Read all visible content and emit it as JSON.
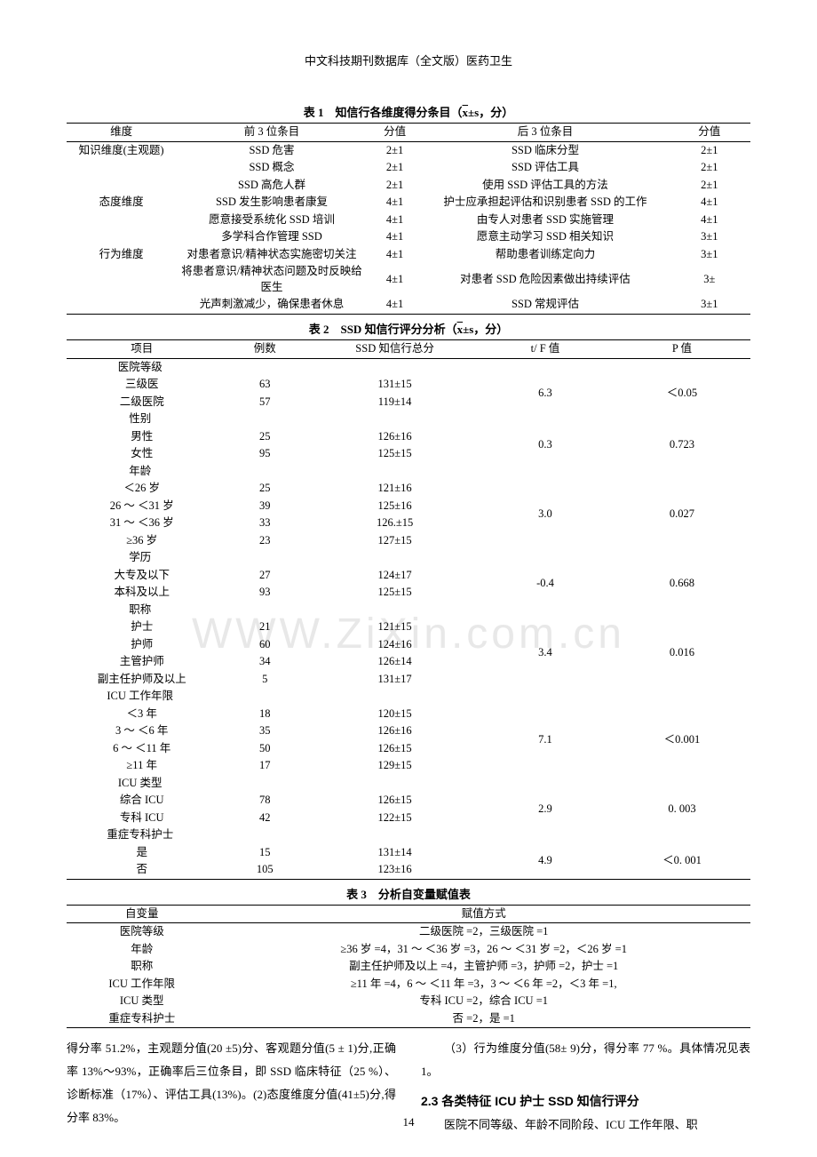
{
  "header": "中文科技期刊数据库（全文版）医药卫生",
  "watermark": "WWW.ZiXin.com.cn",
  "page_number": "14",
  "table1": {
    "caption_prefix": "表 1　知信行各维度得分条目（",
    "caption_xbar": "x",
    "caption_suffix": "±s，分）",
    "headers": [
      "维度",
      "前 3 位条目",
      "分值",
      "后 3 位条目",
      "分值"
    ],
    "rows": [
      [
        "知识维度(主观题)",
        "SSD 危害",
        "2±1",
        "SSD 临床分型",
        "2±1"
      ],
      [
        "",
        "SSD 概念",
        "2±1",
        "SSD 评估工具",
        "2±1"
      ],
      [
        "",
        "SSD 高危人群",
        "2±1",
        "使用 SSD 评估工具的方法",
        "2±1"
      ],
      [
        "态度维度",
        "SSD 发生影响患者康复",
        "4±1",
        "护士应承担起评估和识别患者 SSD 的工作",
        "4±1"
      ],
      [
        "",
        "愿意接受系统化 SSD 培训",
        "4±1",
        "由专人对患者 SSD 实施管理",
        "4±1"
      ],
      [
        "",
        "多学科合作管理 SSD",
        "4±1",
        "愿意主动学习 SSD 相关知识",
        "3±1"
      ],
      [
        "行为维度",
        "对患者意识/精神状态实施密切关注",
        "4±1",
        "帮助患者训练定向力",
        "3±1"
      ],
      [
        "",
        "将患者意识/精神状态问题及时反映给医生",
        "4±1",
        "对患者 SSD 危险因素做出持续评估",
        "3±"
      ],
      [
        "",
        "光声刺激减少，确保患者休息",
        "4±1",
        "SSD 常规评估",
        "3±1"
      ]
    ]
  },
  "table2": {
    "caption_prefix": "表 2　SSD 知信行评分分析（",
    "caption_xbar": "x",
    "caption_suffix": "±s，分）",
    "headers": [
      "项目",
      "例数",
      "SSD 知信行总分",
      "t/ F 值",
      "P 值"
    ],
    "groups": [
      {
        "title": "医院等级",
        "tf": "6.3",
        "p": "＜0.05",
        "rows": [
          [
            "三级医",
            "63",
            "131±15"
          ],
          [
            "二级医院",
            "57",
            "119±14"
          ]
        ]
      },
      {
        "title": "性别",
        "tf": "0.3",
        "p": "0.723",
        "rows": [
          [
            "男性",
            "25",
            "126±16"
          ],
          [
            "女性",
            "95",
            "125±15"
          ]
        ]
      },
      {
        "title": "年龄",
        "tf": "3.0",
        "p": "0.027",
        "rows": [
          [
            "＜26 岁",
            "25",
            "121±16"
          ],
          [
            "26 ～ ＜31 岁",
            "39",
            "125±16"
          ],
          [
            "31 ～ ＜36 岁",
            "33",
            "126.±15"
          ],
          [
            "≥36 岁",
            "23",
            "127±15"
          ]
        ]
      },
      {
        "title": "学历",
        "tf": "-0.4",
        "p": "0.668",
        "rows": [
          [
            "大专及以下",
            "27",
            "124±17"
          ],
          [
            "本科及以上",
            "93",
            "125±15"
          ]
        ]
      },
      {
        "title": "职称",
        "tf": "3.4",
        "p": "0.016",
        "rows": [
          [
            "护士",
            "21",
            "121±15"
          ],
          [
            "护师",
            "60",
            "124±16"
          ],
          [
            "主管护师",
            "34",
            "126±14"
          ],
          [
            "副主任护师及以上",
            "5",
            "131±17"
          ]
        ]
      },
      {
        "title": "ICU 工作年限",
        "tf": "7.1",
        "p": "＜0.001",
        "rows": [
          [
            "＜3 年",
            "18",
            "120±15"
          ],
          [
            "3 ～ ＜6 年",
            "35",
            "126±16"
          ],
          [
            "6 ～ ＜11 年",
            "50",
            "126±15"
          ],
          [
            "≥11 年",
            "17",
            "129±15"
          ]
        ]
      },
      {
        "title": "ICU 类型",
        "tf": "2.9",
        "p": "0. 003",
        "rows": [
          [
            "综合 ICU",
            "78",
            "126±15"
          ],
          [
            "专科 ICU",
            "42",
            "122±15"
          ]
        ]
      },
      {
        "title": "重症专科护士",
        "tf": "4.9",
        "p": "＜0. 001",
        "rows": [
          [
            "是",
            "15",
            "131±14"
          ],
          [
            "否",
            "105",
            "123±16"
          ]
        ]
      }
    ]
  },
  "table3": {
    "caption": "表 3　分析自变量赋值表",
    "headers": [
      "自变量",
      "赋值方式"
    ],
    "rows": [
      [
        "医院等级",
        "二级医院 =2，三级医院 =1"
      ],
      [
        "年龄",
        "≥36 岁 =4，31 ～ ＜36 岁 =3，26 ～ ＜31 岁 =2，＜26 岁 =1"
      ],
      [
        "职称",
        "副主任护师及以上 =4，主管护师 =3，护师 =2，护士 =1"
      ],
      [
        "ICU 工作年限",
        "≥11 年 =4，6 ～ ＜11 年 =3，3 ～ ＜6 年 =2，＜3 年 =1,"
      ],
      [
        "ICU 类型",
        "专科 ICU =2，综合 ICU =1"
      ],
      [
        "重症专科护士",
        "否 =2，是 =1"
      ]
    ]
  },
  "body": {
    "left": "得分率 51.2%，主观题分值(20 ±5)分、客观题分值(5 ± 1)分,正确率 13%～93%，正确率后三位条目，即 SSD 临床特征（25 %）、诊断标准（17%）、评估工具(13%)。(2)态度维度分值(41±5)分,得分率 83%。",
    "right_p": "（3）行为维度分值(58± 9)分，得分率 77 %。具体情况见表 1。",
    "right_h": "2.3 各类特征 ICU 护士 SSD 知信行评分",
    "right_p2": "医院不同等级、年龄不同阶段、ICU 工作年限、职"
  }
}
